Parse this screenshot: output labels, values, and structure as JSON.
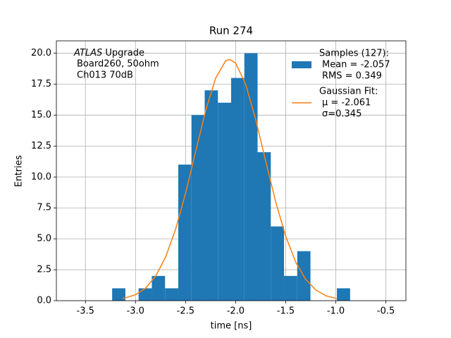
{
  "chart_data": {
    "type": "histogram",
    "title": "Run 274",
    "xlabel": "time [ns]",
    "ylabel": "Entries",
    "annotation": [
      "ATLAS Upgrade",
      "Board260, 50ohm",
      "Ch013 70dB"
    ],
    "annotation_emphasis": "ATLAS",
    "grid": true,
    "legend": "upper right",
    "xlim": [
      -3.79,
      -0.3
    ],
    "ylim": [
      0,
      21.0
    ],
    "xticks": [
      -3.5,
      {
        "value": -3.0,
        "label": "-3.0"
      },
      -2.5,
      {
        "value": -2.0,
        "label": "-2.0"
      },
      -1.5,
      {
        "value": -1.0,
        "label": "-1.0"
      },
      -0.5
    ],
    "yticks": [
      {
        "value": 0,
        "label": "0.0"
      },
      2.5,
      {
        "value": 5,
        "label": "5.0"
      },
      7.5,
      {
        "value": 10,
        "label": "10.0"
      },
      12.5,
      {
        "value": 15,
        "label": "15.0"
      },
      17.5,
      {
        "value": 20,
        "label": "20.0"
      }
    ],
    "series": [
      {
        "name": "Samples (127):",
        "legend_lines": [
          "Mean = -2.057",
          "RMS = 0.349"
        ],
        "color": "#1f77b4",
        "bins": [
          -3.233,
          -3.101,
          -2.969,
          -2.837,
          -2.705,
          -2.573,
          -2.441,
          -2.309,
          -2.177,
          -2.045,
          -1.913,
          -1.781,
          -1.649,
          -1.517,
          -1.385,
          -1.253,
          -1.121,
          -0.989,
          -0.857
        ],
        "values": [
          1,
          0,
          1,
          2,
          1,
          11,
          15,
          17,
          16,
          18,
          20,
          12,
          6,
          2,
          4,
          0,
          0,
          1
        ]
      },
      {
        "name": "Gaussian Fit:",
        "legend_lines": [
          "μ = -2.061",
          "σ=0.345"
        ],
        "color": "#ff7f0e",
        "kind": "line",
        "x": [
          -3.13,
          -3.0,
          -2.9,
          -2.8,
          -2.7,
          -2.6,
          -2.5,
          -2.4,
          -2.3,
          -2.2,
          -2.1,
          -2.061,
          -2.0,
          -1.9,
          -1.8,
          -1.7,
          -1.6,
          -1.5,
          -1.4,
          -1.3,
          -1.2,
          -1.1,
          -0.99
        ],
        "values": [
          0.16,
          0.48,
          1.01,
          1.97,
          3.51,
          5.76,
          8.68,
          12.03,
          15.34,
          17.98,
          19.38,
          19.5,
          19.2,
          17.49,
          14.65,
          11.28,
          7.98,
          5.2,
          3.11,
          1.71,
          0.87,
          0.4,
          0.16
        ]
      }
    ]
  }
}
